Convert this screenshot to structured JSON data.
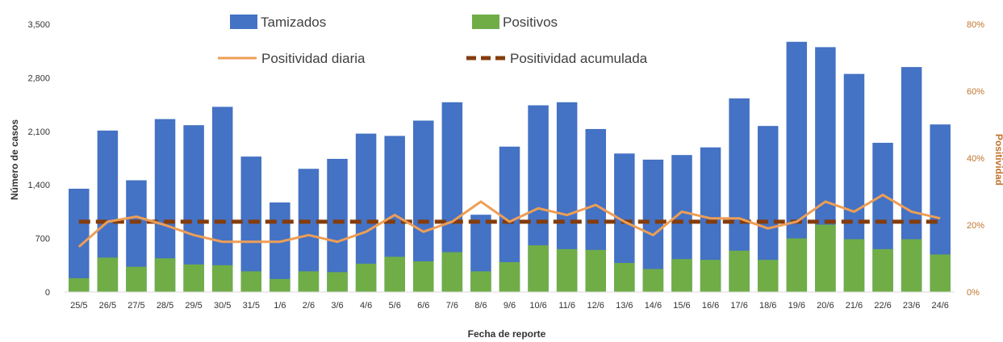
{
  "chart_data": {
    "type": "bar",
    "xlabel": "Fecha de reporte",
    "ylabel": "Número de casos",
    "y2label": "Positividad",
    "ylim": [
      0,
      3500
    ],
    "yticks": [
      "0",
      "700",
      "1,400",
      "2,100",
      "2,800",
      "3,500"
    ],
    "y2lim": [
      0,
      0.8
    ],
    "y2ticks": [
      "0%",
      "20%",
      "40%",
      "60%",
      "80%"
    ],
    "grid": false,
    "legend_position": "top",
    "categories": [
      "25/5",
      "26/5",
      "27/5",
      "28/5",
      "29/5",
      "30/5",
      "31/5",
      "1/6",
      "2/6",
      "3/6",
      "4/6",
      "5/6",
      "6/6",
      "7/6",
      "8/6",
      "9/6",
      "10/6",
      "11/6",
      "12/6",
      "13/6",
      "14/6",
      "15/6",
      "16/6",
      "17/6",
      "18/6",
      "19/6",
      "20/6",
      "21/6",
      "22/6",
      "23/6",
      "24/6"
    ],
    "series": [
      {
        "name": "Tamizados",
        "kind": "bar",
        "axis": "left",
        "color": "#4472c4",
        "values": [
          1350,
          2110,
          1460,
          2260,
          2180,
          2420,
          1770,
          1170,
          1610,
          1740,
          2070,
          2040,
          2240,
          2480,
          1010,
          1900,
          2440,
          2480,
          2130,
          1810,
          1730,
          1790,
          1890,
          2530,
          2170,
          3270,
          3200,
          2850,
          1950,
          2940,
          2190
        ]
      },
      {
        "name": "Positivos",
        "kind": "bar",
        "axis": "left",
        "color": "#70ad47",
        "values": [
          180,
          450,
          330,
          440,
          360,
          350,
          270,
          170,
          270,
          260,
          370,
          460,
          400,
          520,
          270,
          390,
          610,
          560,
          550,
          380,
          300,
          430,
          420,
          540,
          420,
          700,
          880,
          690,
          560,
          690,
          490
        ]
      },
      {
        "name": "Positividad diaria",
        "kind": "line",
        "axis": "right",
        "color": "#ed9e55",
        "values": [
          0.135,
          0.21,
          0.225,
          0.2,
          0.17,
          0.15,
          0.15,
          0.15,
          0.17,
          0.15,
          0.18,
          0.23,
          0.18,
          0.21,
          0.27,
          0.21,
          0.25,
          0.23,
          0.26,
          0.21,
          0.17,
          0.24,
          0.22,
          0.22,
          0.19,
          0.21,
          0.27,
          0.24,
          0.29,
          0.24,
          0.22
        ]
      },
      {
        "name": "Positividad acumulada",
        "kind": "line",
        "dashed": true,
        "axis": "right",
        "color": "#843c0c",
        "values": [
          0.21,
          0.21,
          0.21,
          0.21,
          0.21,
          0.21,
          0.21,
          0.21,
          0.21,
          0.21,
          0.21,
          0.21,
          0.21,
          0.21,
          0.21,
          0.21,
          0.21,
          0.21,
          0.21,
          0.21,
          0.21,
          0.21,
          0.21,
          0.21,
          0.21,
          0.21,
          0.21,
          0.21,
          0.21,
          0.21,
          0.21
        ]
      }
    ]
  }
}
